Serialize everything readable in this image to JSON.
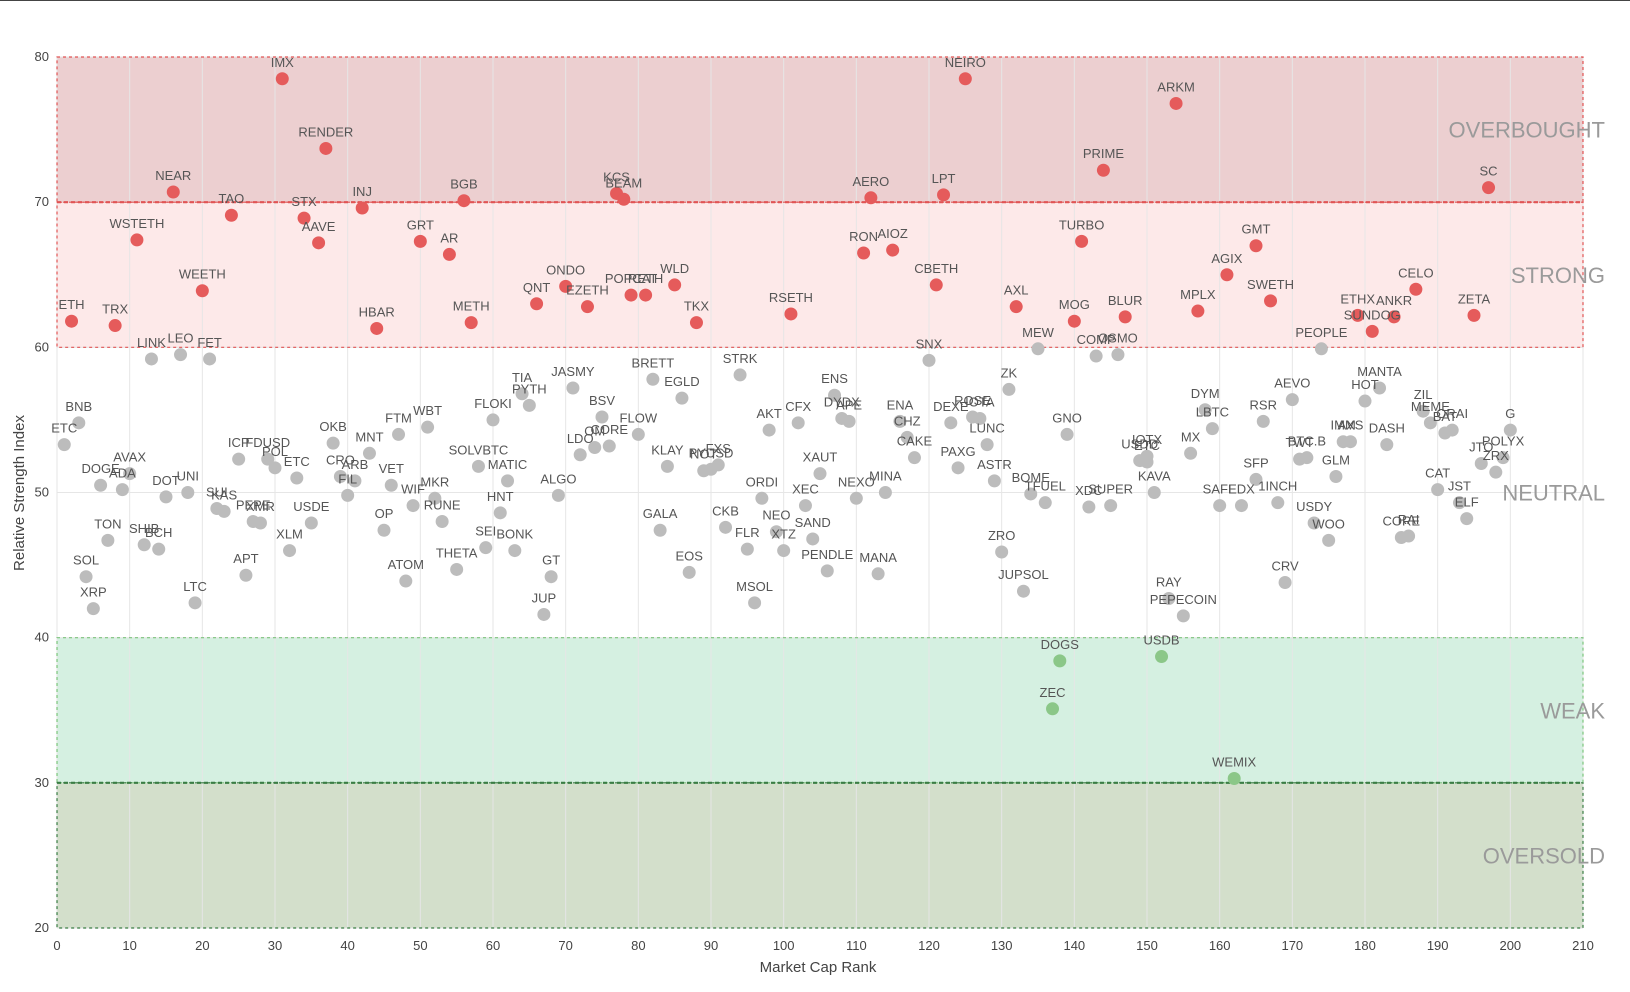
{
  "chart_data": {
    "type": "scatter",
    "xlabel": "Market Cap Rank",
    "ylabel": "Relative Strength Index",
    "xlim": [
      0,
      210
    ],
    "ylim": [
      20,
      80
    ],
    "xticks": [
      0,
      10,
      20,
      30,
      40,
      50,
      60,
      70,
      80,
      90,
      100,
      110,
      120,
      130,
      140,
      150,
      160,
      170,
      180,
      190,
      200,
      210
    ],
    "yticks": [
      20,
      30,
      40,
      50,
      60,
      70,
      80
    ],
    "grid": true,
    "zones": [
      {
        "label": "OVERBOUGHT",
        "from": 70,
        "to": 80,
        "color": "#eccfd0",
        "line_color": "#e05454"
      },
      {
        "label": "STRONG",
        "from": 60,
        "to": 70,
        "color": "#fde9e9",
        "line_color": "#e05454"
      },
      {
        "label": "NEUTRAL",
        "from": 40,
        "to": 60,
        "color": "#ffffff",
        "line_color": ""
      },
      {
        "label": "WEAK",
        "from": 30,
        "to": 40,
        "color": "#d5f0e1",
        "line_color": "#7cc47c"
      },
      {
        "label": "OVERSOLD",
        "from": 20,
        "to": 30,
        "color": "#d3dfcb",
        "line_color": "#3a7d44"
      }
    ],
    "colors": {
      "overbought_strong": "#e55b5b",
      "neutral": "#bcbcbc",
      "weak": "#8bc788"
    },
    "points": [
      {
        "label": "IMX",
        "x": 31,
        "y": 78.5
      },
      {
        "label": "NEIRO",
        "x": 125,
        "y": 78.5
      },
      {
        "label": "ARKM",
        "x": 154,
        "y": 76.8
      },
      {
        "label": "RENDER",
        "x": 37,
        "y": 73.7
      },
      {
        "label": "PRIME",
        "x": 144,
        "y": 72.2
      },
      {
        "label": "SC",
        "x": 197,
        "y": 71.0
      },
      {
        "label": "NEAR",
        "x": 16,
        "y": 70.7
      },
      {
        "label": "TAO",
        "x": 24,
        "y": 69.1
      },
      {
        "label": "STX",
        "x": 34,
        "y": 68.9
      },
      {
        "label": "INJ",
        "x": 42,
        "y": 69.6
      },
      {
        "label": "BGB",
        "x": 56,
        "y": 70.1
      },
      {
        "label": "KCS",
        "x": 77,
        "y": 70.6
      },
      {
        "label": "BEAM",
        "x": 78,
        "y": 70.2
      },
      {
        "label": "AERO",
        "x": 112,
        "y": 70.3
      },
      {
        "label": "LPT",
        "x": 122,
        "y": 70.5
      },
      {
        "label": "WSTETH",
        "x": 11,
        "y": 67.4
      },
      {
        "label": "AAVE",
        "x": 36,
        "y": 67.2
      },
      {
        "label": "GRT",
        "x": 50,
        "y": 67.3
      },
      {
        "label": "AR",
        "x": 54,
        "y": 66.4
      },
      {
        "label": "RON",
        "x": 111,
        "y": 66.5
      },
      {
        "label": "AIOZ",
        "x": 115,
        "y": 66.7
      },
      {
        "label": "TURBO",
        "x": 141,
        "y": 67.3
      },
      {
        "label": "GMT",
        "x": 165,
        "y": 67.0
      },
      {
        "label": "AGIX",
        "x": 161,
        "y": 65.0
      },
      {
        "label": "WEETH",
        "x": 20,
        "y": 63.9
      },
      {
        "label": "ONDO",
        "x": 70,
        "y": 64.2
      },
      {
        "label": "WLD",
        "x": 85,
        "y": 64.3
      },
      {
        "label": "CBETH",
        "x": 121,
        "y": 64.3
      },
      {
        "label": "CELO",
        "x": 187,
        "y": 64.0
      },
      {
        "label": "POPCAT",
        "x": 79,
        "y": 63.6
      },
      {
        "label": "RETH",
        "x": 81,
        "y": 63.6
      },
      {
        "label": "SWETH",
        "x": 167,
        "y": 63.2
      },
      {
        "label": "ETH",
        "x": 2,
        "y": 61.8
      },
      {
        "label": "TRX",
        "x": 8,
        "y": 61.5
      },
      {
        "label": "QNT",
        "x": 66,
        "y": 63.0
      },
      {
        "label": "EZETH",
        "x": 73,
        "y": 62.8
      },
      {
        "label": "AXL",
        "x": 132,
        "y": 62.8
      },
      {
        "label": "MPLX",
        "x": 157,
        "y": 62.5
      },
      {
        "label": "HBAR",
        "x": 44,
        "y": 61.3
      },
      {
        "label": "METH",
        "x": 57,
        "y": 61.7
      },
      {
        "label": "TKX",
        "x": 88,
        "y": 61.7
      },
      {
        "label": "RSETH",
        "x": 101,
        "y": 62.3
      },
      {
        "label": "MOG",
        "x": 140,
        "y": 61.8
      },
      {
        "label": "BLUR",
        "x": 147,
        "y": 62.1
      },
      {
        "label": "ETHX",
        "x": 179,
        "y": 62.2
      },
      {
        "label": "ANKR",
        "x": 184,
        "y": 62.1
      },
      {
        "label": "SUNDOG",
        "x": 181,
        "y": 61.1
      },
      {
        "label": "ZETA",
        "x": 195,
        "y": 62.2
      },
      {
        "label": "LINK",
        "x": 13,
        "y": 59.2
      },
      {
        "label": "LEO",
        "x": 17,
        "y": 59.5
      },
      {
        "label": "FET",
        "x": 21,
        "y": 59.2
      },
      {
        "label": "SNX",
        "x": 120,
        "y": 59.1
      },
      {
        "label": "MEW",
        "x": 135,
        "y": 59.9
      },
      {
        "label": "COMP",
        "x": 143,
        "y": 59.4
      },
      {
        "label": "OSMO",
        "x": 146,
        "y": 59.5
      },
      {
        "label": "PEOPLE",
        "x": 174,
        "y": 59.9
      },
      {
        "label": "BRETT",
        "x": 82,
        "y": 57.8
      },
      {
        "label": "EGLD",
        "x": 86,
        "y": 56.5
      },
      {
        "label": "STRK",
        "x": 94,
        "y": 58.1
      },
      {
        "label": "TIA",
        "x": 64,
        "y": 56.8
      },
      {
        "label": "PYTH",
        "x": 65,
        "y": 56.0
      },
      {
        "label": "JASMY",
        "x": 71,
        "y": 57.2
      },
      {
        "label": "ENS",
        "x": 107,
        "y": 56.7
      },
      {
        "label": "ZK",
        "x": 131,
        "y": 57.1
      },
      {
        "label": "MANTA",
        "x": 182,
        "y": 57.2
      },
      {
        "label": "HOT",
        "x": 180,
        "y": 56.3
      },
      {
        "label": "AEVO",
        "x": 170,
        "y": 56.4
      },
      {
        "label": "DYM",
        "x": 158,
        "y": 55.7
      },
      {
        "label": "ZIL",
        "x": 188,
        "y": 55.6
      },
      {
        "label": "BNB",
        "x": 3,
        "y": 54.8
      },
      {
        "label": "FLOKI",
        "x": 60,
        "y": 55.0
      },
      {
        "label": "BSV",
        "x": 75,
        "y": 55.2
      },
      {
        "label": "AKT",
        "x": 98,
        "y": 54.3
      },
      {
        "label": "CFX",
        "x": 102,
        "y": 54.8
      },
      {
        "label": "DYDX",
        "x": 108,
        "y": 55.1
      },
      {
        "label": "APE",
        "x": 109,
        "y": 54.9
      },
      {
        "label": "ENA",
        "x": 116,
        "y": 54.9
      },
      {
        "label": "DEXE",
        "x": 123,
        "y": 54.8
      },
      {
        "label": "ROSE",
        "x": 126,
        "y": 55.2
      },
      {
        "label": "IOTA",
        "x": 127,
        "y": 55.1
      },
      {
        "label": "LBTC",
        "x": 159,
        "y": 54.4
      },
      {
        "label": "RSR",
        "x": 166,
        "y": 54.9
      },
      {
        "label": "MEME",
        "x": 189,
        "y": 54.8
      },
      {
        "label": "FTM",
        "x": 47,
        "y": 54.0
      },
      {
        "label": "WBT",
        "x": 51,
        "y": 54.5
      },
      {
        "label": "FLOW",
        "x": 80,
        "y": 54.0
      },
      {
        "label": "GNO",
        "x": 139,
        "y": 54.0
      },
      {
        "label": "ORAI",
        "x": 192,
        "y": 54.3
      },
      {
        "label": "BAT",
        "x": 191,
        "y": 54.1
      },
      {
        "label": "G",
        "x": 200,
        "y": 54.3
      },
      {
        "label": "ETC",
        "x": 1,
        "y": 53.3
      },
      {
        "label": "OKB",
        "x": 38,
        "y": 53.4
      },
      {
        "label": "MNT",
        "x": 43,
        "y": 52.7
      },
      {
        "label": "CORE",
        "x": 76,
        "y": 53.2
      },
      {
        "label": "LDO",
        "x": 72,
        "y": 52.6
      },
      {
        "label": "OM",
        "x": 74,
        "y": 53.1
      },
      {
        "label": "CHZ",
        "x": 117,
        "y": 53.8
      },
      {
        "label": "LUNC",
        "x": 128,
        "y": 53.3
      },
      {
        "label": "IOTX",
        "x": 150,
        "y": 52.5
      },
      {
        "label": "MX",
        "x": 156,
        "y": 52.7
      },
      {
        "label": "AXS",
        "x": 178,
        "y": 53.5
      },
      {
        "label": "IMM",
        "x": 177,
        "y": 53.5
      },
      {
        "label": "DASH",
        "x": 183,
        "y": 53.3
      },
      {
        "label": "JTO",
        "x": 196,
        "y": 52.0
      },
      {
        "label": "POLYX",
        "x": 199,
        "y": 52.4
      },
      {
        "label": "ICP",
        "x": 25,
        "y": 52.3
      },
      {
        "label": "FDUSD",
        "x": 29,
        "y": 52.3
      },
      {
        "label": "POL",
        "x": 30,
        "y": 51.7
      },
      {
        "label": "SOLVBTC",
        "x": 58,
        "y": 51.8
      },
      {
        "label": "KLAY",
        "x": 84,
        "y": 51.8
      },
      {
        "label": "NOT",
        "x": 89,
        "y": 51.5
      },
      {
        "label": "FXS",
        "x": 91,
        "y": 51.9
      },
      {
        "label": "PYUSD",
        "x": 90,
        "y": 51.6
      },
      {
        "label": "CAKE",
        "x": 118,
        "y": 52.4
      },
      {
        "label": "TWT",
        "x": 171,
        "y": 52.3
      },
      {
        "label": "BTC.B",
        "x": 172,
        "y": 52.4
      },
      {
        "label": "USDD",
        "x": 149,
        "y": 52.2
      },
      {
        "label": "ETC",
        "x": 150,
        "y": 52.1
      },
      {
        "label": "ZRX",
        "x": 198,
        "y": 51.4
      },
      {
        "label": "AVAX",
        "x": 10,
        "y": 51.3
      },
      {
        "label": "DOGE",
        "x": 6,
        "y": 50.5
      },
      {
        "label": "ADA",
        "x": 9,
        "y": 50.2
      },
      {
        "label": "UNI",
        "x": 18,
        "y": 50.0
      },
      {
        "label": "DOT",
        "x": 15,
        "y": 49.7
      },
      {
        "label": "ETC",
        "x": 33,
        "y": 51.0
      },
      {
        "label": "CRO",
        "x": 39,
        "y": 51.1
      },
      {
        "label": "ARB",
        "x": 41,
        "y": 50.8
      },
      {
        "label": "FIL",
        "x": 40,
        "y": 49.8
      },
      {
        "label": "VET",
        "x": 46,
        "y": 50.5
      },
      {
        "label": "MATIC",
        "x": 62,
        "y": 50.8
      },
      {
        "label": "ALGO",
        "x": 69,
        "y": 49.8
      },
      {
        "label": "ORDI",
        "x": 97,
        "y": 49.6
      },
      {
        "label": "XAUT",
        "x": 105,
        "y": 51.3
      },
      {
        "label": "NEXO",
        "x": 110,
        "y": 49.6
      },
      {
        "label": "MINA",
        "x": 114,
        "y": 50.0
      },
      {
        "label": "PAXG",
        "x": 124,
        "y": 51.7
      },
      {
        "label": "ASTR",
        "x": 129,
        "y": 50.8
      },
      {
        "label": "BOME",
        "x": 134,
        "y": 49.9
      },
      {
        "label": "GLM",
        "x": 176,
        "y": 51.1
      },
      {
        "label": "KAVA",
        "x": 151,
        "y": 50.0
      },
      {
        "label": "SFP",
        "x": 165,
        "y": 50.9
      },
      {
        "label": "CAT",
        "x": 190,
        "y": 50.2
      },
      {
        "label": "WIF",
        "x": 49,
        "y": 49.1
      },
      {
        "label": "MKR",
        "x": 52,
        "y": 49.6
      },
      {
        "label": "HNT",
        "x": 61,
        "y": 48.6
      },
      {
        "label": "XEC",
        "x": 103,
        "y": 49.1
      },
      {
        "label": "TFUEL",
        "x": 136,
        "y": 49.3
      },
      {
        "label": "XDC",
        "x": 142,
        "y": 49.0
      },
      {
        "label": "SUPER",
        "x": 145,
        "y": 49.1
      },
      {
        "label": "SAFE",
        "x": 160,
        "y": 49.1
      },
      {
        "label": "EDX",
        "x": 163,
        "y": 49.1
      },
      {
        "label": "1INCH",
        "x": 168,
        "y": 49.3
      },
      {
        "label": "JST",
        "x": 193,
        "y": 49.3
      },
      {
        "label": "SUI",
        "x": 22,
        "y": 48.9
      },
      {
        "label": "KAS",
        "x": 23,
        "y": 48.7
      },
      {
        "label": "PEPE",
        "x": 27,
        "y": 48.0
      },
      {
        "label": "XMR",
        "x": 28,
        "y": 47.9
      },
      {
        "label": "USDE",
        "x": 35,
        "y": 47.9
      },
      {
        "label": "RUNE",
        "x": 53,
        "y": 48.0
      },
      {
        "label": "OP",
        "x": 45,
        "y": 47.4
      },
      {
        "label": "GALA",
        "x": 83,
        "y": 47.4
      },
      {
        "label": "CKB",
        "x": 92,
        "y": 47.6
      },
      {
        "label": "NEO",
        "x": 99,
        "y": 47.3
      },
      {
        "label": "XTZ",
        "x": 100,
        "y": 46.0
      },
      {
        "label": "SAND",
        "x": 104,
        "y": 46.8
      },
      {
        "label": "ELF",
        "x": 194,
        "y": 48.2
      },
      {
        "label": "USDY",
        "x": 173,
        "y": 47.9
      },
      {
        "label": "WOO",
        "x": 175,
        "y": 46.7
      },
      {
        "label": "CORE",
        "x": 185,
        "y": 46.9
      },
      {
        "label": "RAI",
        "x": 186,
        "y": 47.0
      },
      {
        "label": "TON",
        "x": 7,
        "y": 46.7
      },
      {
        "label": "SHIB",
        "x": 12,
        "y": 46.4
      },
      {
        "label": "BCH",
        "x": 14,
        "y": 46.1
      },
      {
        "label": "XLM",
        "x": 32,
        "y": 46.0
      },
      {
        "label": "SEI",
        "x": 59,
        "y": 46.2
      },
      {
        "label": "BONK",
        "x": 63,
        "y": 46.0
      },
      {
        "label": "FLR",
        "x": 95,
        "y": 46.1
      },
      {
        "label": "ZRO",
        "x": 130,
        "y": 45.9
      },
      {
        "label": "SOL",
        "x": 4,
        "y": 44.2
      },
      {
        "label": "APT",
        "x": 26,
        "y": 44.3
      },
      {
        "label": "ATOM",
        "x": 48,
        "y": 43.9
      },
      {
        "label": "THETA",
        "x": 55,
        "y": 44.7
      },
      {
        "label": "GT",
        "x": 68,
        "y": 44.2
      },
      {
        "label": "EOS",
        "x": 87,
        "y": 44.5
      },
      {
        "label": "PENDLE",
        "x": 106,
        "y": 44.6
      },
      {
        "label": "MANA",
        "x": 113,
        "y": 44.4
      },
      {
        "label": "JUPSOL",
        "x": 133,
        "y": 43.2
      },
      {
        "label": "RAY",
        "x": 153,
        "y": 42.7
      },
      {
        "label": "CRV",
        "x": 169,
        "y": 43.8
      },
      {
        "label": "XRP",
        "x": 5,
        "y": 42.0
      },
      {
        "label": "LTC",
        "x": 19,
        "y": 42.4
      },
      {
        "label": "JUP",
        "x": 67,
        "y": 41.6
      },
      {
        "label": "MSOL",
        "x": 96,
        "y": 42.4
      },
      {
        "label": "PEPECOIN",
        "x": 155,
        "y": 41.5
      },
      {
        "label": "DOGS",
        "x": 138,
        "y": 38.4
      },
      {
        "label": "USDB",
        "x": 152,
        "y": 38.7
      },
      {
        "label": "ZEC",
        "x": 137,
        "y": 35.1
      },
      {
        "label": "WEMIX",
        "x": 162,
        "y": 30.3
      }
    ]
  }
}
